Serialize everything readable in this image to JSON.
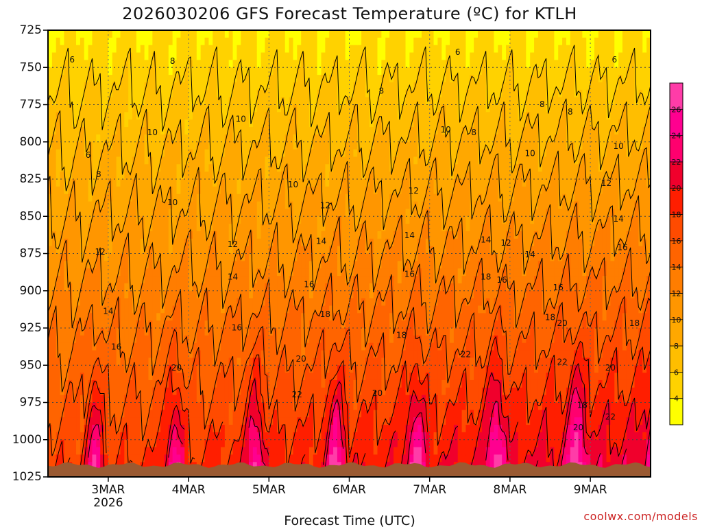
{
  "chart_data": {
    "type": "heatmap",
    "title": "2026030206 GFS Forecast Temperature (ºC) for KTLH",
    "xlabel": "Forecast Time (UTC)",
    "ylabel": "",
    "credit": "coolwx.com/models",
    "y_levels": [
      725,
      750,
      775,
      800,
      825,
      850,
      875,
      900,
      925,
      950,
      975,
      1000,
      1025
    ],
    "ylim": [
      725,
      1025
    ],
    "x_ticks": [
      {
        "label": "3MAR",
        "sub": "2026"
      },
      {
        "label": "4MAR",
        "sub": ""
      },
      {
        "label": "5MAR",
        "sub": ""
      },
      {
        "label": "6MAR",
        "sub": ""
      },
      {
        "label": "7MAR",
        "sub": ""
      },
      {
        "label": "8MAR",
        "sub": ""
      },
      {
        "label": "9MAR",
        "sub": ""
      }
    ],
    "xlim_days": [
      0.25,
      7.75
    ],
    "colorbar": {
      "ticks": [
        4,
        6,
        8,
        10,
        12,
        14,
        16,
        18,
        20,
        22,
        24,
        26
      ],
      "colors": [
        "#ffff00",
        "#ffd200",
        "#ffbe00",
        "#ffa800",
        "#ff9600",
        "#ff7d00",
        "#ff6400",
        "#ff4b00",
        "#ff1e00",
        "#f0002c",
        "#ff006e",
        "#ff0090",
        "#ff3ca8"
      ]
    },
    "colors": {
      "ground": "#9a5a32"
    },
    "contour_labels": [
      {
        "t": 0.55,
        "p": 745,
        "v": "6"
      },
      {
        "t": 0.75,
        "p": 809,
        "v": "6"
      },
      {
        "t": 0.88,
        "p": 822,
        "v": "8"
      },
      {
        "t": 1.8,
        "p": 746,
        "v": "8"
      },
      {
        "t": 2.65,
        "p": 785,
        "v": "10"
      },
      {
        "t": 1.55,
        "p": 794,
        "v": "10"
      },
      {
        "t": 1.8,
        "p": 841,
        "v": "10"
      },
      {
        "t": 2.55,
        "p": 869,
        "v": "12"
      },
      {
        "t": 0.9,
        "p": 874,
        "v": "12"
      },
      {
        "t": 3.3,
        "p": 829,
        "v": "10"
      },
      {
        "t": 3.7,
        "p": 843,
        "v": "12"
      },
      {
        "t": 4.8,
        "p": 833,
        "v": "12"
      },
      {
        "t": 4.4,
        "p": 766,
        "v": "8"
      },
      {
        "t": 5.2,
        "p": 792,
        "v": "10"
      },
      {
        "t": 5.35,
        "p": 740,
        "v": "6"
      },
      {
        "t": 5.55,
        "p": 794,
        "v": "8"
      },
      {
        "t": 6.4,
        "p": 775,
        "v": "8"
      },
      {
        "t": 6.25,
        "p": 808,
        "v": "10"
      },
      {
        "t": 6.75,
        "p": 780,
        "v": "8"
      },
      {
        "t": 7.3,
        "p": 745,
        "v": "6"
      },
      {
        "t": 7.35,
        "p": 803,
        "v": "10"
      },
      {
        "t": 7.2,
        "p": 828,
        "v": "12"
      },
      {
        "t": 7.35,
        "p": 852,
        "v": "14"
      },
      {
        "t": 3.65,
        "p": 867,
        "v": "14"
      },
      {
        "t": 2.55,
        "p": 891,
        "v": "14"
      },
      {
        "t": 4.75,
        "p": 863,
        "v": "14"
      },
      {
        "t": 5.7,
        "p": 866,
        "v": "14"
      },
      {
        "t": 5.95,
        "p": 868,
        "v": "12"
      },
      {
        "t": 6.25,
        "p": 876,
        "v": "14"
      },
      {
        "t": 7.4,
        "p": 871,
        "v": "16"
      },
      {
        "t": 1.0,
        "p": 914,
        "v": "14"
      },
      {
        "t": 1.1,
        "p": 938,
        "v": "16"
      },
      {
        "t": 2.6,
        "p": 925,
        "v": "16"
      },
      {
        "t": 3.5,
        "p": 896,
        "v": "16"
      },
      {
        "t": 4.75,
        "p": 889,
        "v": "16"
      },
      {
        "t": 5.7,
        "p": 891,
        "v": "18"
      },
      {
        "t": 5.9,
        "p": 893,
        "v": "16"
      },
      {
        "t": 6.6,
        "p": 898,
        "v": "16"
      },
      {
        "t": 7.55,
        "p": 922,
        "v": "18"
      },
      {
        "t": 3.7,
        "p": 916,
        "v": "18"
      },
      {
        "t": 4.65,
        "p": 930,
        "v": "18"
      },
      {
        "t": 6.5,
        "p": 918,
        "v": "18"
      },
      {
        "t": 6.65,
        "p": 922,
        "v": "20"
      },
      {
        "t": 1.85,
        "p": 952,
        "v": "20"
      },
      {
        "t": 3.4,
        "p": 946,
        "v": "20"
      },
      {
        "t": 3.35,
        "p": 970,
        "v": "22"
      },
      {
        "t": 4.35,
        "p": 969,
        "v": "20"
      },
      {
        "t": 5.45,
        "p": 943,
        "v": "22"
      },
      {
        "t": 6.65,
        "p": 948,
        "v": "22"
      },
      {
        "t": 6.9,
        "p": 977,
        "v": "18"
      },
      {
        "t": 6.85,
        "p": 992,
        "v": "20"
      },
      {
        "t": 7.25,
        "p": 952,
        "v": "20"
      },
      {
        "t": 7.25,
        "p": 985,
        "v": "22"
      }
    ]
  }
}
